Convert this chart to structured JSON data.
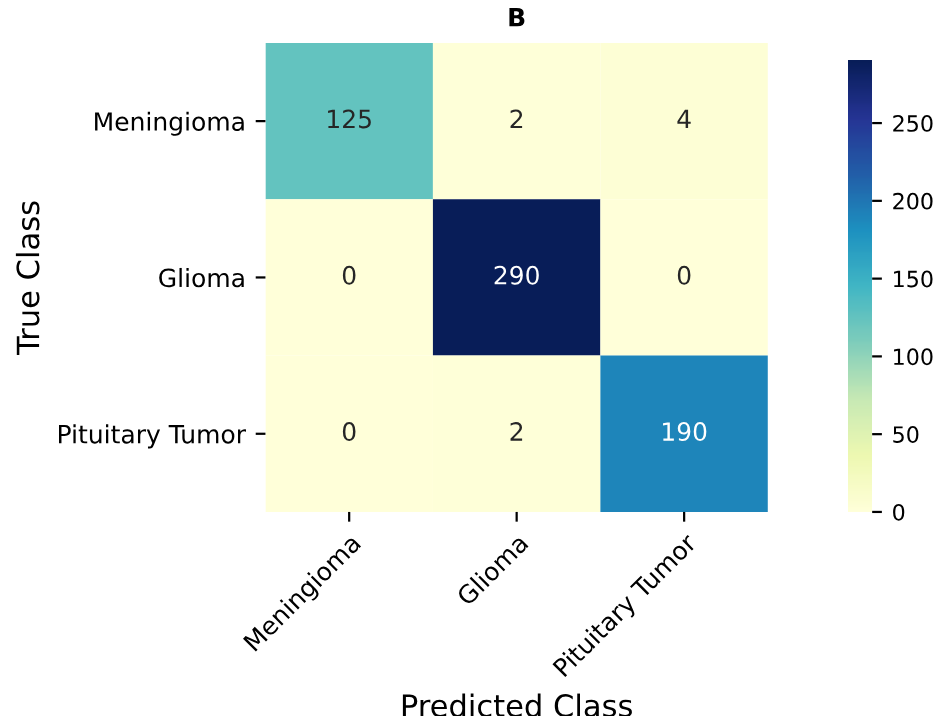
{
  "chart_data": {
    "type": "heatmap",
    "title": "B",
    "xlabel": "Predicted Class",
    "ylabel": "True Class",
    "categories": [
      "Meningioma",
      "Glioma",
      "Pituitary Tumor"
    ],
    "y_categories": [
      "Meningioma",
      "Glioma",
      "Pituitary Tumor"
    ],
    "cells": [
      [
        125,
        2,
        4
      ],
      [
        0,
        290,
        0
      ],
      [
        0,
        2,
        190
      ]
    ],
    "data_labels": true,
    "clim": [
      0,
      290
    ],
    "cticks": [
      0,
      50,
      100,
      150,
      200,
      250
    ]
  }
}
